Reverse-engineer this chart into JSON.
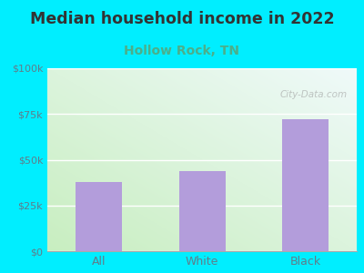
{
  "title": "Median household income in 2022",
  "subtitle": "Hollow Rock, TN",
  "categories": [
    "All",
    "White",
    "Black"
  ],
  "values": [
    38000,
    44000,
    72000
  ],
  "bar_color": "#b39ddb",
  "background_outer": "#00eeff",
  "bg_grad_bottom_left": "#c8eec0",
  "bg_grad_top_right": "#f0fafa",
  "title_fontsize": 12.5,
  "title_color": "#333333",
  "subtitle_fontsize": 10,
  "subtitle_color": "#4caf8a",
  "tick_label_color": "#607d8b",
  "ytick_labels": [
    "$0",
    "$25k",
    "$50k",
    "$75k",
    "$100k"
  ],
  "ytick_values": [
    0,
    25000,
    50000,
    75000,
    100000
  ],
  "ylim": [
    0,
    100000
  ],
  "watermark": "City-Data.com"
}
